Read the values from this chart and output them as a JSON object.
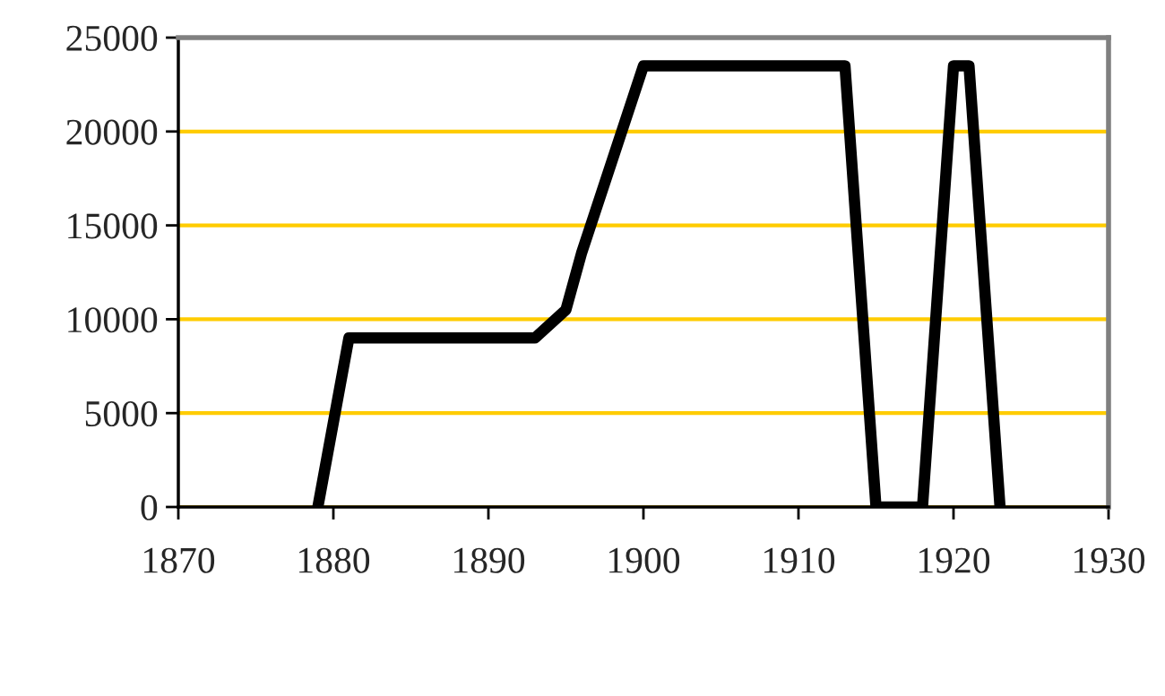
{
  "chart_data": {
    "type": "line",
    "x": [
      1879,
      1881,
      1893,
      1895,
      1896,
      1898,
      1900,
      1913,
      1915,
      1918,
      1920,
      1921,
      1923
    ],
    "series": [
      {
        "color": "#000000",
        "values": [
          0,
          9000,
          9000,
          10500,
          13500,
          18500,
          23500,
          23500,
          0,
          0,
          23500,
          23500,
          0
        ]
      }
    ],
    "xlim": [
      1870,
      1930
    ],
    "xticks": [
      1870,
      1880,
      1890,
      1900,
      1910,
      1920,
      1930
    ],
    "ylim": [
      0,
      25000
    ],
    "yticks": [
      0,
      5000,
      10000,
      15000,
      20000,
      25000
    ],
    "grid": "y",
    "marker": "none",
    "line_style": "solid",
    "legend": false
  }
}
